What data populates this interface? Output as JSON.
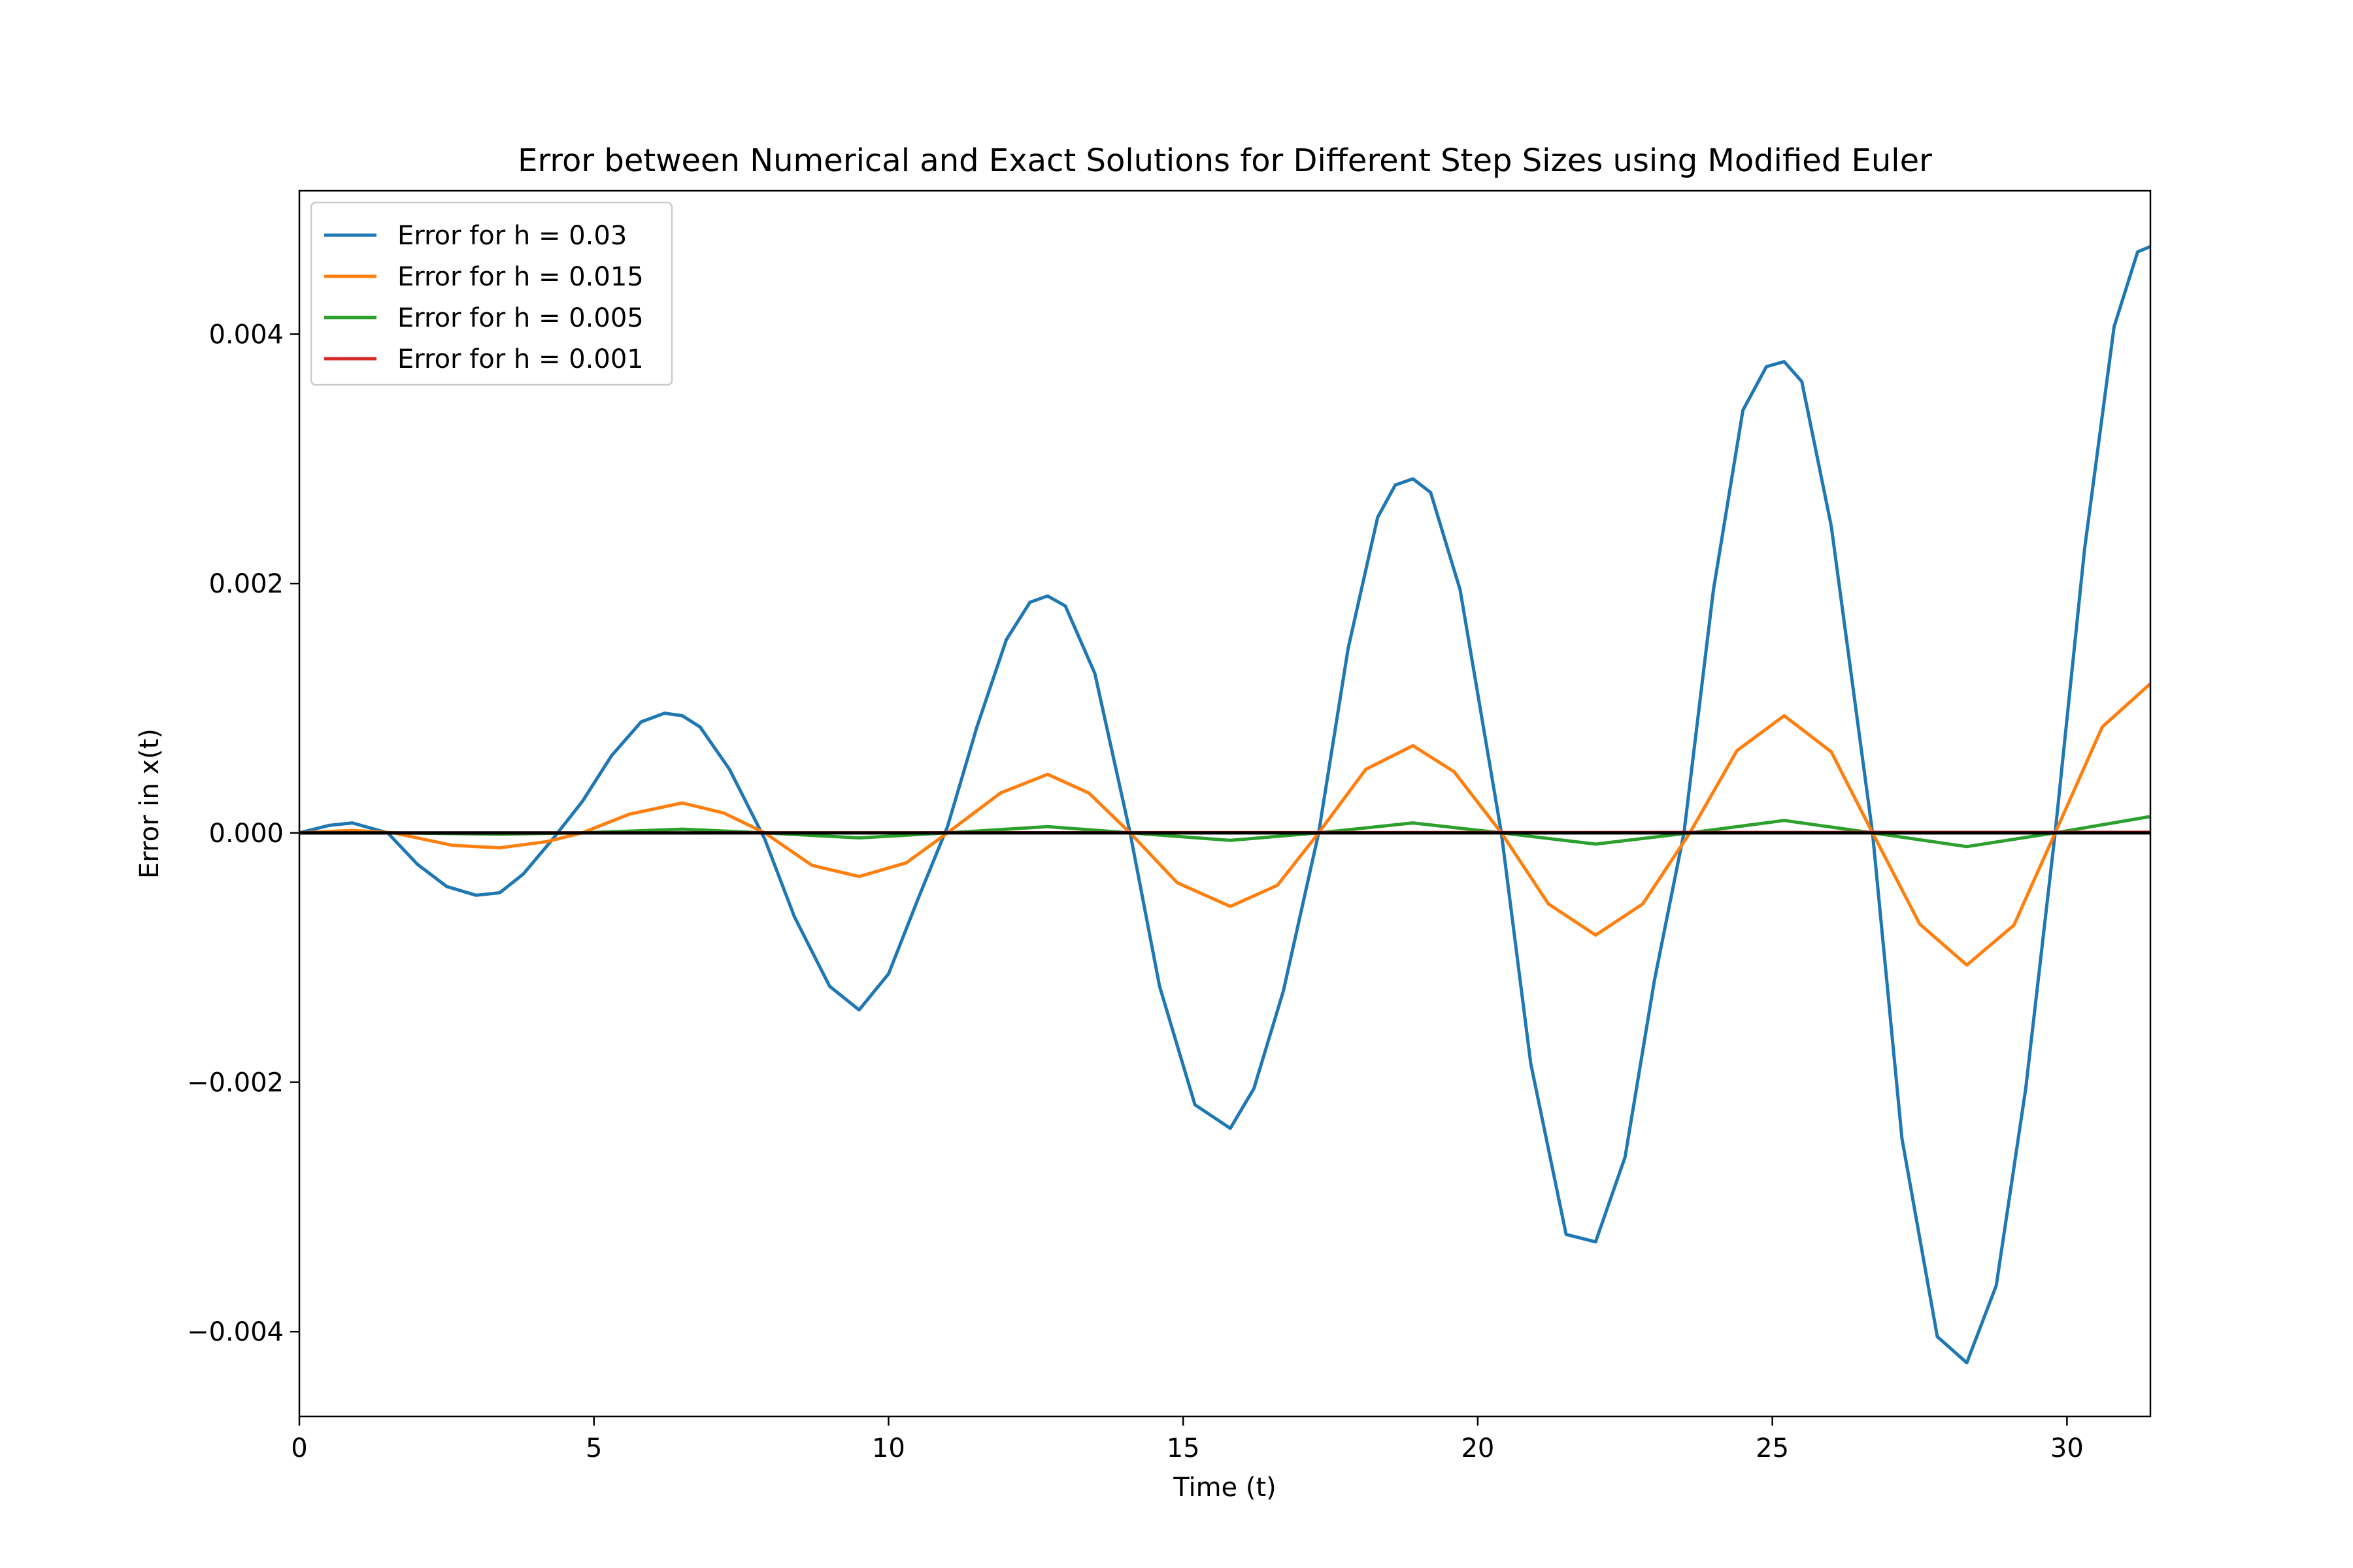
{
  "chart_data": {
    "type": "line",
    "title": "Error between Numerical and Exact Solutions for Different Step Sizes using Modified Euler",
    "xlabel": "Time (t)",
    "ylabel": "Error in x(t)",
    "xlim": [
      0,
      31.416
    ],
    "ylim": [
      -0.00468,
      0.00515
    ],
    "xticks": [
      0,
      5,
      10,
      15,
      20,
      25,
      30
    ],
    "xtick_labels": [
      "0",
      "5",
      "10",
      "15",
      "20",
      "25",
      "30"
    ],
    "yticks": [
      -0.004,
      -0.002,
      0.0,
      0.002,
      0.004
    ],
    "ytick_labels": [
      "−0.004",
      "−0.002",
      "0.000",
      "0.002",
      "0.004"
    ],
    "grid": false,
    "legend_position": "top-left",
    "reference_line": {
      "y": 0,
      "color": "#000000"
    },
    "series": [
      {
        "name": "Error for h = 0.03",
        "color": "#1f77b4",
        "x": [
          0,
          0.5,
          0.9,
          1.5,
          2.0,
          2.5,
          3.0,
          3.4,
          3.8,
          4.3,
          4.8,
          5.3,
          5.8,
          6.2,
          6.5,
          6.8,
          7.3,
          7.9,
          8.4,
          9.0,
          9.5,
          10.0,
          10.5,
          11.0,
          11.5,
          12.0,
          12.4,
          12.7,
          13.0,
          13.5,
          14.1,
          14.6,
          15.2,
          15.8,
          16.2,
          16.7,
          17.3,
          17.8,
          18.3,
          18.6,
          18.9,
          19.2,
          19.7,
          20.4,
          20.9,
          21.5,
          22.0,
          22.5,
          23.0,
          23.5,
          24.0,
          24.5,
          24.9,
          25.2,
          25.5,
          26.0,
          26.7,
          27.2,
          27.8,
          28.3,
          28.8,
          29.3,
          29.8,
          30.3,
          30.8,
          31.2,
          31.4
        ],
        "values": [
          0,
          6e-05,
          8e-05,
          0.0,
          -0.00025,
          -0.00043,
          -0.0005,
          -0.00048,
          -0.00033,
          -5e-05,
          0.00025,
          0.00062,
          0.00089,
          0.00096,
          0.00094,
          0.00085,
          0.00051,
          -5e-05,
          -0.00067,
          -0.00123,
          -0.00142,
          -0.00113,
          -0.00053,
          5e-05,
          0.00085,
          0.00155,
          0.00185,
          0.0019,
          0.00182,
          0.00128,
          0.0,
          -0.00123,
          -0.00218,
          -0.00237,
          -0.00205,
          -0.00127,
          0.0,
          0.00148,
          0.00253,
          0.00279,
          0.00284,
          0.00273,
          0.00195,
          0.0,
          -0.00185,
          -0.00322,
          -0.00328,
          -0.0026,
          -0.00118,
          0.0,
          0.00195,
          0.00339,
          0.00374,
          0.00378,
          0.00362,
          0.00246,
          0.0,
          -0.00245,
          -0.00404,
          -0.00425,
          -0.00363,
          -0.00205,
          0.0,
          0.00228,
          0.00406,
          0.00466,
          0.0047
        ]
      },
      {
        "name": "Error for h = 0.015",
        "color": "#ff7f0e",
        "x": [
          0,
          0.9,
          1.6,
          2.6,
          3.4,
          4.2,
          4.8,
          5.6,
          6.5,
          7.2,
          7.9,
          8.7,
          9.5,
          10.3,
          11.0,
          11.9,
          12.7,
          13.4,
          14.1,
          14.9,
          15.8,
          16.6,
          17.3,
          18.1,
          18.9,
          19.6,
          20.4,
          21.2,
          22.0,
          22.8,
          23.6,
          24.4,
          25.2,
          26.0,
          26.7,
          27.5,
          28.3,
          29.1,
          29.8,
          30.6,
          31.4
        ],
        "values": [
          0,
          2e-05,
          0.0,
          -0.0001,
          -0.00012,
          -7e-05,
          0.0,
          0.00015,
          0.00024,
          0.00016,
          0.0,
          -0.00026,
          -0.00035,
          -0.00024,
          0.0,
          0.00032,
          0.00047,
          0.00032,
          0.0,
          -0.0004,
          -0.00059,
          -0.00042,
          0.0,
          0.00051,
          0.0007,
          0.00049,
          0.0,
          -0.00057,
          -0.00082,
          -0.00057,
          0.0,
          0.00066,
          0.00094,
          0.00065,
          0.0,
          -0.00073,
          -0.00106,
          -0.00074,
          0.0,
          0.00085,
          0.00119
        ]
      },
      {
        "name": "Error for h = 0.005",
        "color": "#2ca02c",
        "x": [
          0,
          1.6,
          3.4,
          4.8,
          6.5,
          7.9,
          9.5,
          11.0,
          12.7,
          14.1,
          15.8,
          17.3,
          18.9,
          20.4,
          22.0,
          23.6,
          25.2,
          26.7,
          28.3,
          29.8,
          31.4
        ],
        "values": [
          0,
          0.0,
          -1e-05,
          0.0,
          3e-05,
          0.0,
          -4e-05,
          0.0,
          5e-05,
          0.0,
          -6e-05,
          0.0,
          8e-05,
          0.0,
          -9e-05,
          0.0,
          0.0001,
          0.0,
          -0.00011,
          0.0,
          0.00013
        ]
      },
      {
        "name": "Error for h = 0.001",
        "color": "#d62728",
        "x": [
          0,
          6.5,
          12.7,
          18.9,
          25.2,
          31.4
        ],
        "values": [
          0,
          1e-06,
          2e-06,
          3e-06,
          4e-06,
          5e-06
        ]
      }
    ]
  }
}
